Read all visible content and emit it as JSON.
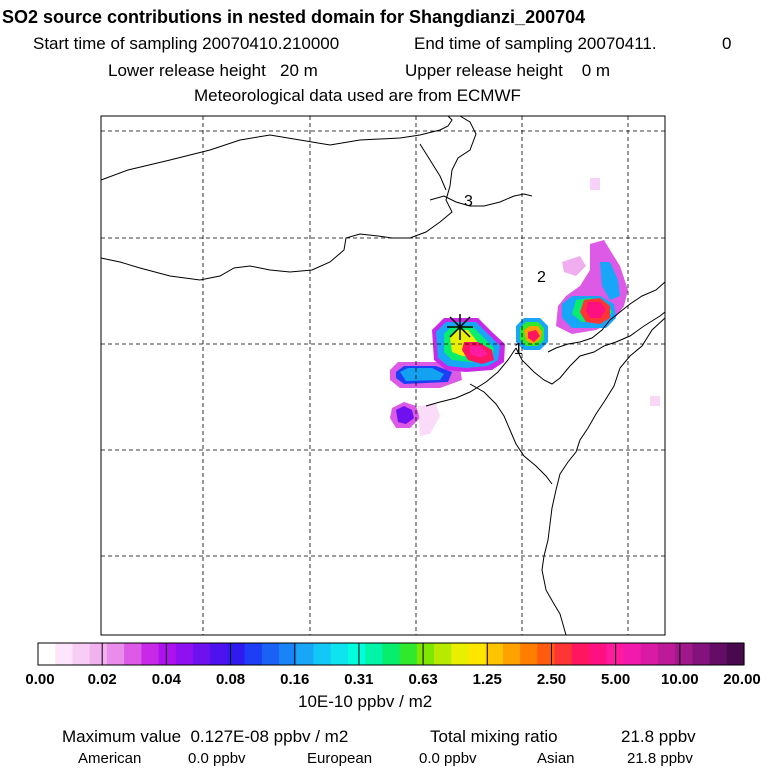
{
  "header": {
    "title": "SO2 source contributions in nested domain for Shangdianzi_200704",
    "start_label": "Start time of sampling 20070410.210000",
    "end_label": "End time of sampling 20070411.",
    "end_value": "0",
    "lower_release": "Lower release height   20 m",
    "upper_release": "Upper release height    0 m",
    "met_data": "Meteorological data used are from ECMWF"
  },
  "colorbar": {
    "unit_label": "10E-10 ppbv / m2",
    "ticks": [
      "0.00",
      "0.02",
      "0.04",
      "0.08",
      "0.16",
      "0.31",
      "0.63",
      "1.25",
      "2.50",
      "5.00",
      "10.00",
      "20.00"
    ],
    "colors": [
      "#ffffff",
      "#fde6fb",
      "#f8cdf5",
      "#f2b2f0",
      "#e98ceb",
      "#dd5ae6",
      "#c829e8",
      "#ad12ee",
      "#8f10f0",
      "#6f10ef",
      "#4d12ee",
      "#2f1bf0",
      "#1d3ef4",
      "#1a62f6",
      "#1884f7",
      "#18a7f8",
      "#13c8f6",
      "#0de4ef",
      "#00ffdc",
      "#00f5a8",
      "#07ee6f",
      "#30e82c",
      "#7fe600",
      "#b8ea00",
      "#e8ef00",
      "#ffe600",
      "#ffc400",
      "#ffa200",
      "#ff7e00",
      "#ff5b10",
      "#ff3535",
      "#ff1560",
      "#ff1080",
      "#ff1aa0",
      "#f21aac",
      "#d81aa5",
      "#bd1a9a",
      "#a0188c",
      "#84127c",
      "#650d66",
      "#480a4c"
    ]
  },
  "stats": {
    "max_label": "Maximum value  0.127E-08 ppbv / m2",
    "total_label": "Total mixing ratio",
    "total_value": "21.8 ppbv",
    "american_label": "American",
    "american_value": "0.0 ppbv",
    "european_label": "European",
    "european_value": "0.0 ppbv",
    "asian_label": "Asian",
    "asian_value": "21.8 ppbv"
  },
  "map": {
    "region_labels": [
      "1",
      "2",
      "3"
    ]
  },
  "chart_data": {
    "type": "heatmap",
    "title": "SO2 source contributions in nested domain for Shangdianzi_200704",
    "colorbar_ticks": [
      0.0,
      0.02,
      0.04,
      0.08,
      0.16,
      0.31,
      0.63,
      1.25,
      2.5,
      5.0,
      10.0,
      20.0
    ],
    "unit": "10E-10 ppbv / m2",
    "grid": true,
    "maximum_value": "0.127E-08 ppbv / m2",
    "total_mixing_ratio_ppbv": 21.8,
    "contributions_ppbv": {
      "American": 0.0,
      "European": 0.0,
      "Asian": 21.8
    },
    "receptor_marker": "Shangdianzi",
    "region_labels": [
      "1",
      "2",
      "3"
    ]
  }
}
